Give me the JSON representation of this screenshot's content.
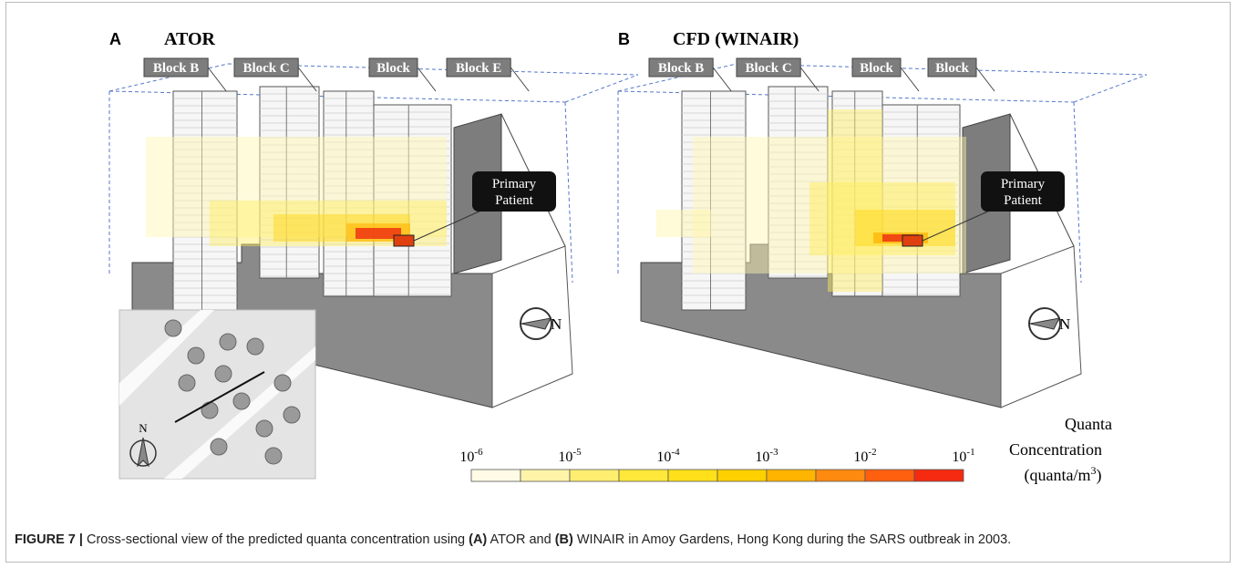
{
  "panels": [
    {
      "letter": "A",
      "title": "ATOR",
      "blocks": [
        "Block B",
        "Block C",
        "Block",
        "Block E"
      ],
      "callout": [
        "Primary",
        "Patient"
      ],
      "north": "N"
    },
    {
      "letter": "B",
      "title": "CFD (WINAIR)",
      "blocks": [
        "Block B",
        "Block C",
        "Block",
        "Block"
      ],
      "callout": [
        "Primary",
        "Patient"
      ],
      "north": "N"
    }
  ],
  "inset": {
    "north": "N"
  },
  "colorbar": {
    "ticks": [
      {
        "base": "10",
        "exp": "-6"
      },
      {
        "base": "10",
        "exp": "-5"
      },
      {
        "base": "10",
        "exp": "-4"
      },
      {
        "base": "10",
        "exp": "-3"
      },
      {
        "base": "10",
        "exp": "-2"
      },
      {
        "base": "10",
        "exp": "-1"
      }
    ],
    "colors": [
      "#fffbe6",
      "#fff4a8",
      "#ffee70",
      "#ffe83a",
      "#ffe01a",
      "#ffd000",
      "#ffb400",
      "#ff8a10",
      "#ff6010",
      "#f52a10"
    ],
    "title": [
      "Quanta",
      "Concentration"
    ],
    "units": {
      "open": "(quanta/m",
      "sup": "3",
      "close": ")"
    }
  },
  "caption": {
    "label": "FIGURE 7 |",
    "parts": [
      " Cross-sectional view of the predicted quanta concentration using ",
      "(A)",
      " ATOR and ",
      "(B)",
      " WINAIR in Amoy Gardens, Hong Kong during the SARS outbreak in 2003."
    ]
  }
}
